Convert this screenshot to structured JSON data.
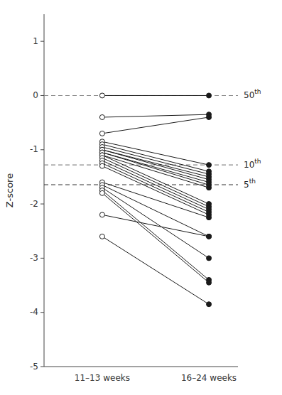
{
  "chart_data": {
    "type": "slope",
    "categories": [
      "11–13 weeks",
      "16–24 weeks"
    ],
    "y_label": "Z-score",
    "color": "#1a1a1a",
    "series": [
      {
        "values": [
          0.0,
          0.0
        ]
      },
      {
        "values": [
          -0.4,
          -0.35
        ]
      },
      {
        "values": [
          -0.7,
          -0.4
        ]
      },
      {
        "values": [
          -0.85,
          -1.28
        ]
      },
      {
        "values": [
          -0.9,
          -1.4
        ]
      },
      {
        "values": [
          -0.95,
          -1.45
        ]
      },
      {
        "values": [
          -1.0,
          -1.5
        ]
      },
      {
        "values": [
          -1.0,
          -1.55
        ]
      },
      {
        "values": [
          -1.05,
          -1.6
        ]
      },
      {
        "values": [
          -1.05,
          -1.65
        ]
      },
      {
        "values": [
          -1.1,
          -1.7
        ]
      },
      {
        "values": [
          -1.1,
          -2.0
        ]
      },
      {
        "values": [
          -1.15,
          -2.05
        ]
      },
      {
        "values": [
          -1.2,
          -2.1
        ]
      },
      {
        "values": [
          -1.25,
          -2.15
        ]
      },
      {
        "values": [
          -1.3,
          -2.2
        ]
      },
      {
        "values": [
          -1.6,
          -2.25
        ]
      },
      {
        "values": [
          -1.65,
          -2.6
        ]
      },
      {
        "values": [
          -1.7,
          -3.0
        ]
      },
      {
        "values": [
          -1.75,
          -3.4
        ]
      },
      {
        "values": [
          -1.8,
          -3.45
        ]
      },
      {
        "values": [
          -2.2,
          -2.6
        ]
      },
      {
        "values": [
          -2.6,
          -3.85
        ]
      }
    ],
    "reference_lines": [
      {
        "value": 0.0,
        "label": "50th",
        "color": "#888888"
      },
      {
        "value": -1.28,
        "label": "10th",
        "color": "#888888"
      },
      {
        "value": -1.645,
        "label": "5th",
        "color": "#333333"
      }
    ],
    "ylim": [
      -5,
      1.5
    ],
    "yticks": [
      1,
      0,
      -1,
      -2,
      -3,
      -4,
      -5
    ],
    "grid": false
  }
}
